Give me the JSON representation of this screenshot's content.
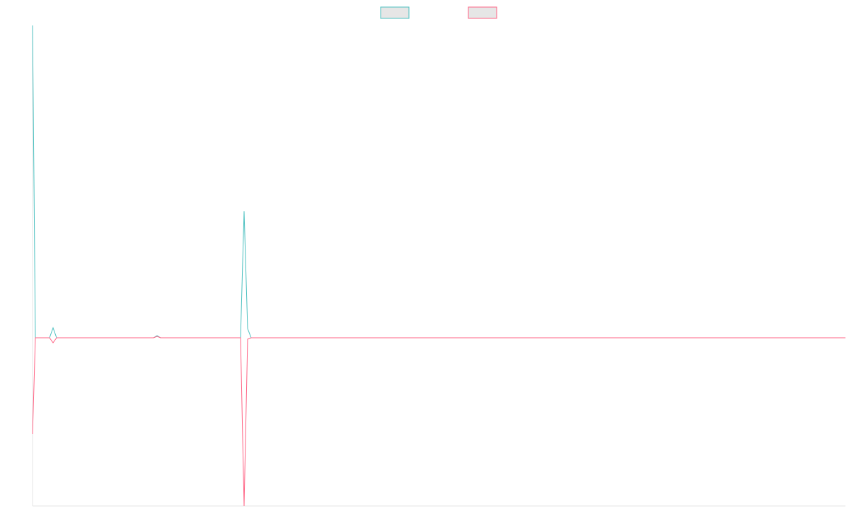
{
  "chart_data": {
    "type": "line",
    "x": [
      0,
      4,
      24,
      29,
      34,
      171,
      176,
      181,
      294,
      299,
      304,
      309,
      1149
    ],
    "series": [
      {
        "color": "#4bc0c0",
        "values": [
          442,
          0,
          0,
          14,
          0,
          0,
          3,
          0,
          0,
          179,
          13,
          0,
          0
        ]
      },
      {
        "color": "#ff6384",
        "values": [
          -136,
          0,
          0,
          -7,
          0,
          0,
          2,
          0,
          0,
          -238,
          -2,
          0,
          0
        ]
      }
    ],
    "xlim": [
      0,
      1149
    ],
    "ylim": [
      -238,
      442
    ],
    "grid": false,
    "legend": "top"
  }
}
